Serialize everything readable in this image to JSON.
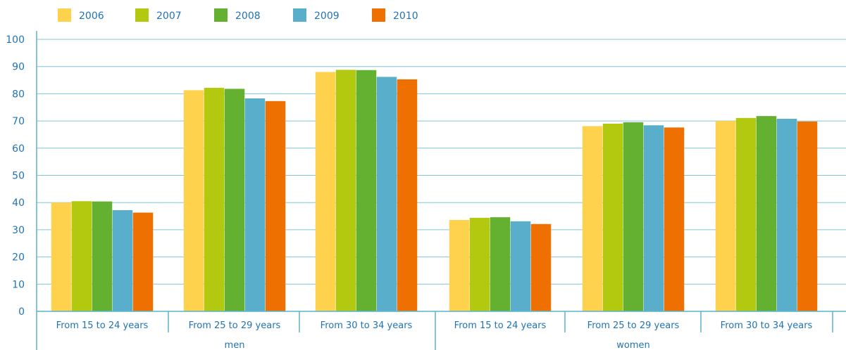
{
  "chart_data": {
    "type": "bar",
    "title": "",
    "xlabel": "",
    "ylabel": "",
    "ylim": [
      0,
      100
    ],
    "yticks": [
      0,
      10,
      20,
      30,
      40,
      50,
      60,
      70,
      80,
      90,
      100
    ],
    "grid": true,
    "legend_position": "top-left",
    "groups": [
      "men",
      "women"
    ],
    "categories": [
      "From 15 to 24 years",
      "From 25 to 29 years",
      "From 30 to 34 years",
      "From 15 to 24 years",
      "From 25 to 29 years",
      "From 30 to 34 years"
    ],
    "category_group": [
      0,
      0,
      0,
      1,
      1,
      1
    ],
    "series": [
      {
        "name": "2006",
        "color": "#ffd24d",
        "values": [
          40.0,
          81.3,
          88.0,
          33.6,
          68.1,
          70.0
        ]
      },
      {
        "name": "2007",
        "color": "#b2c90f",
        "values": [
          40.5,
          82.2,
          88.8,
          34.4,
          69.0,
          71.1
        ]
      },
      {
        "name": "2008",
        "color": "#64b030",
        "values": [
          40.4,
          81.8,
          88.7,
          34.6,
          69.5,
          71.8
        ]
      },
      {
        "name": "2009",
        "color": "#58aecb",
        "values": [
          37.2,
          78.3,
          86.2,
          33.1,
          68.4,
          70.8
        ]
      },
      {
        "name": "2010",
        "color": "#ed7000",
        "values": [
          36.3,
          77.3,
          85.3,
          32.1,
          67.6,
          69.8
        ]
      }
    ]
  },
  "colors": {
    "axis": "#5ab3c9",
    "text": "#1f73b6",
    "grid": "#7fc6d7"
  }
}
